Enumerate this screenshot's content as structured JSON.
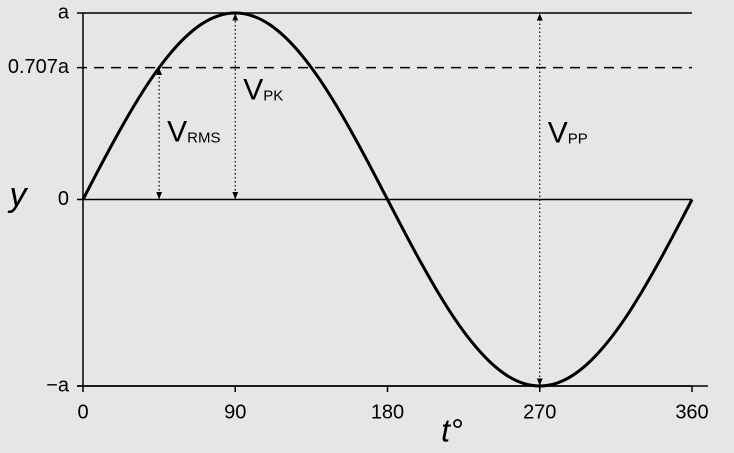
{
  "chart_data": {
    "type": "line",
    "x_label": "t°",
    "y_label": "y",
    "x": [
      0,
      10,
      20,
      30,
      40,
      50,
      60,
      70,
      80,
      90,
      100,
      110,
      120,
      130,
      140,
      150,
      160,
      170,
      180,
      190,
      200,
      210,
      220,
      230,
      240,
      250,
      260,
      270,
      280,
      290,
      300,
      310,
      320,
      330,
      340,
      350,
      360
    ],
    "series": [
      {
        "color": "#000000",
        "values": [
          0,
          0.174,
          0.342,
          0.5,
          0.643,
          0.766,
          0.866,
          0.94,
          0.985,
          1,
          0.985,
          0.94,
          0.866,
          0.766,
          0.643,
          0.5,
          0.342,
          0.174,
          0,
          -0.174,
          -0.342,
          -0.5,
          -0.643,
          -0.766,
          -0.866,
          -0.94,
          -0.985,
          -1,
          -0.985,
          -0.94,
          -0.866,
          -0.766,
          -0.643,
          -0.5,
          -0.342,
          -0.174,
          0
        ]
      }
    ],
    "xlim": [
      0,
      360
    ],
    "xticks": [
      0,
      90,
      180,
      270,
      360
    ],
    "ylim": [
      -1,
      1
    ],
    "yticks": [
      {
        "value": 1,
        "label": "a"
      },
      {
        "value": 0.707,
        "label": "0.707a"
      },
      0,
      {
        "value": -1,
        "label": "−a"
      }
    ],
    "annotations": [
      {
        "label": "V",
        "sub": "RMS",
        "x": 45,
        "range": [
          0,
          0.707
        ]
      },
      {
        "label": "V",
        "sub": "PK",
        "x": 90,
        "range": [
          0,
          1
        ]
      },
      {
        "label": "V",
        "sub": "PP",
        "x": 270,
        "range": [
          -1,
          1
        ]
      }
    ]
  }
}
